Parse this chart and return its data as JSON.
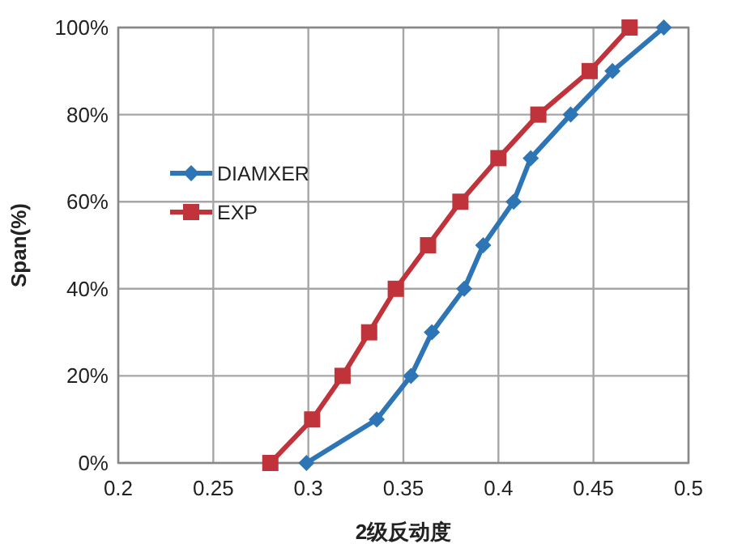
{
  "chart_data": {
    "type": "line",
    "xlabel": "2级反动度",
    "ylabel": "Span(%)",
    "xlim": [
      0.2,
      0.5
    ],
    "xticks": [
      0.2,
      0.25,
      0.3,
      0.35,
      0.4,
      0.45,
      0.5
    ],
    "ylim": [
      0,
      100
    ],
    "yticks": [
      {
        "value": 0,
        "label": "0%"
      },
      {
        "value": 20,
        "label": "20%"
      },
      {
        "value": 40,
        "label": "40%"
      },
      {
        "value": 60,
        "label": "60%"
      },
      {
        "value": 80,
        "label": "80%"
      },
      {
        "value": 100,
        "label": "100%"
      }
    ],
    "grid": true,
    "legend": "left",
    "line_style": "solid",
    "series": [
      {
        "name": "DIAMXER",
        "color": "#2e75b6",
        "marker": "diamond",
        "x": [
          0.299,
          0.336,
          0.354,
          0.365,
          0.382,
          0.392,
          0.408,
          0.417,
          0.438,
          0.46,
          0.487
        ],
        "values": [
          0,
          10,
          20,
          30,
          40,
          50,
          60,
          70,
          80,
          90,
          100
        ]
      },
      {
        "name": "EXP",
        "color": "#c0333a",
        "marker": "square",
        "x": [
          0.28,
          0.302,
          0.318,
          0.332,
          0.346,
          0.363,
          0.38,
          0.4,
          0.421,
          0.448,
          0.469
        ],
        "values": [
          0,
          10,
          20,
          30,
          40,
          50,
          60,
          70,
          80,
          90,
          100
        ]
      }
    ]
  }
}
